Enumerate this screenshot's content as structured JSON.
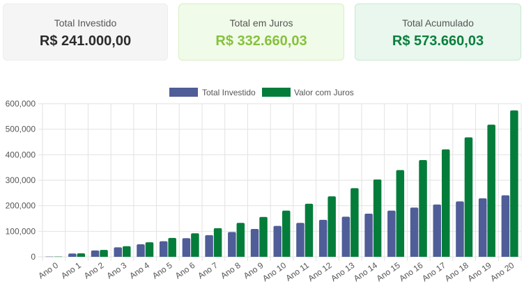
{
  "summary": {
    "invested": {
      "label": "Total Investido",
      "value": "R$ 241.000,00"
    },
    "interest": {
      "label": "Total em Juros",
      "value": "R$ 332.660,03"
    },
    "total": {
      "label": "Total Acumulado",
      "value": "R$ 573.660,03"
    }
  },
  "colors": {
    "invested": "#4f5d98",
    "with_interest": "#047d3b",
    "grid": "#e2e2e2"
  },
  "chart_data": {
    "type": "bar",
    "categories": [
      "Ano 0",
      "Ano 1",
      "Ano 2",
      "Ano 3",
      "Ano 4",
      "Ano 5",
      "Ano 6",
      "Ano 7",
      "Ano 8",
      "Ano 9",
      "Ano 10",
      "Ano 11",
      "Ano 12",
      "Ano 13",
      "Ano 14",
      "Ano 15",
      "Ano 16",
      "Ano 17",
      "Ano 18",
      "Ano 19",
      "Ano 20"
    ],
    "series": [
      {
        "name": "Total Investido",
        "values": [
          1000,
          13000,
          25000,
          37000,
          49000,
          61000,
          73000,
          85000,
          97000,
          109000,
          121000,
          133000,
          145000,
          157000,
          169000,
          181000,
          193000,
          205000,
          217000,
          229000,
          241000
        ]
      },
      {
        "name": "Valor com Juros",
        "values": [
          1000,
          13500,
          27000,
          41500,
          57000,
          74000,
          92000,
          112000,
          133000,
          156000,
          181000,
          208000,
          237000,
          269000,
          303000,
          340000,
          379000,
          421000,
          468000,
          518000,
          573660
        ]
      }
    ],
    "ylim": [
      0,
      600000
    ],
    "yticks": [
      "0",
      "100,000",
      "200,000",
      "300,000",
      "400,000",
      "500,000",
      "600,000"
    ],
    "ytick_values": [
      0,
      100000,
      200000,
      300000,
      400000,
      500000,
      600000
    ],
    "grid": true,
    "legend": "top-center"
  }
}
